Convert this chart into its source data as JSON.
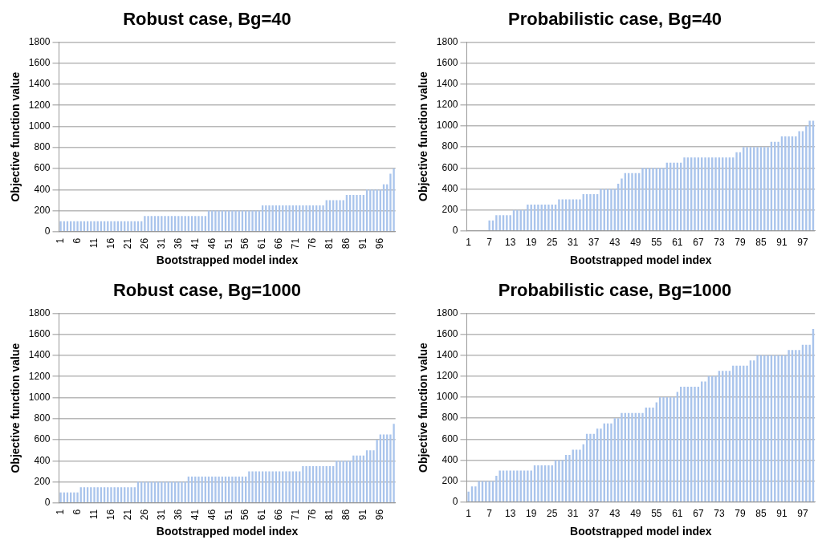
{
  "chart_data": [
    {
      "type": "bar",
      "title": "Robust case, Bg=40",
      "xlabel": "Bootstrapped model index",
      "ylabel": "Objective function value",
      "ylim": [
        0,
        1800
      ],
      "yticks": [
        0,
        200,
        400,
        600,
        800,
        1000,
        1200,
        1400,
        1600,
        1800
      ],
      "grid": "y",
      "legend": false,
      "color": "#a9c4ec",
      "categories": [
        "1",
        null,
        null,
        null,
        null,
        "6",
        null,
        null,
        null,
        null,
        "11",
        null,
        null,
        null,
        null,
        "16",
        null,
        null,
        null,
        null,
        "21",
        null,
        null,
        null,
        null,
        "26",
        null,
        null,
        null,
        null,
        "31",
        null,
        null,
        null,
        null,
        "36",
        null,
        null,
        null,
        null,
        "41",
        null,
        null,
        null,
        null,
        "46",
        null,
        null,
        null,
        null,
        "51",
        null,
        null,
        null,
        null,
        "56",
        null,
        null,
        null,
        null,
        "61",
        null,
        null,
        null,
        null,
        "66",
        null,
        null,
        null,
        null,
        "71",
        null,
        null,
        null,
        null,
        "76",
        null,
        null,
        null,
        null,
        "81",
        null,
        null,
        null,
        null,
        "86",
        null,
        null,
        null,
        null,
        "91",
        null,
        null,
        null,
        null,
        "96",
        null,
        null,
        null,
        null
      ],
      "values": [
        100,
        100,
        100,
        100,
        100,
        100,
        100,
        100,
        100,
        100,
        100,
        100,
        100,
        100,
        100,
        100,
        100,
        100,
        100,
        100,
        100,
        100,
        100,
        100,
        100,
        150,
        150,
        150,
        150,
        150,
        150,
        150,
        150,
        150,
        150,
        150,
        150,
        150,
        150,
        150,
        150,
        150,
        150,
        150,
        200,
        200,
        200,
        200,
        200,
        200,
        200,
        200,
        200,
        200,
        200,
        200,
        200,
        200,
        200,
        200,
        250,
        250,
        250,
        250,
        250,
        250,
        250,
        250,
        250,
        250,
        250,
        250,
        250,
        250,
        250,
        250,
        250,
        250,
        250,
        300,
        300,
        300,
        300,
        300,
        300,
        350,
        350,
        350,
        350,
        350,
        350,
        400,
        400,
        400,
        400,
        400,
        450,
        450,
        550,
        600
      ]
    },
    {
      "type": "bar",
      "title": "Probabilistic case, Bg=40",
      "xlabel": "Bootstrapped model index",
      "ylabel": "Objective function value",
      "ylim": [
        0,
        1800
      ],
      "yticks": [
        0,
        200,
        400,
        600,
        800,
        1000,
        1200,
        1400,
        1600,
        1800
      ],
      "grid": "y",
      "legend": false,
      "color": "#a9c4ec",
      "categories": [
        "1",
        null,
        null,
        null,
        null,
        null,
        "7",
        null,
        null,
        null,
        null,
        null,
        "13",
        null,
        null,
        null,
        null,
        null,
        "19",
        null,
        null,
        null,
        null,
        null,
        "25",
        null,
        null,
        null,
        null,
        null,
        "31",
        null,
        null,
        null,
        null,
        null,
        "37",
        null,
        null,
        null,
        null,
        null,
        "43",
        null,
        null,
        null,
        null,
        null,
        "49",
        null,
        null,
        null,
        null,
        null,
        "55",
        null,
        null,
        null,
        null,
        null,
        "61",
        null,
        null,
        null,
        null,
        null,
        "67",
        null,
        null,
        null,
        null,
        null,
        "73",
        null,
        null,
        null,
        null,
        null,
        "79",
        null,
        null,
        null,
        null,
        null,
        "85",
        null,
        null,
        null,
        null,
        null,
        "91",
        null,
        null,
        null,
        null,
        null,
        "97",
        null,
        null,
        null
      ],
      "values": [
        0,
        0,
        0,
        0,
        0,
        0,
        100,
        100,
        150,
        150,
        150,
        150,
        150,
        200,
        200,
        200,
        200,
        250,
        250,
        250,
        250,
        250,
        250,
        250,
        250,
        250,
        300,
        300,
        300,
        300,
        300,
        300,
        300,
        350,
        350,
        350,
        350,
        350,
        400,
        400,
        400,
        400,
        400,
        450,
        500,
        550,
        550,
        550,
        550,
        550,
        600,
        600,
        600,
        600,
        600,
        600,
        600,
        650,
        650,
        650,
        650,
        650,
        700,
        700,
        700,
        700,
        700,
        700,
        700,
        700,
        700,
        700,
        700,
        700,
        700,
        700,
        700,
        750,
        750,
        800,
        800,
        800,
        800,
        800,
        800,
        800,
        800,
        850,
        850,
        850,
        900,
        900,
        900,
        900,
        900,
        950,
        950,
        1000,
        1050,
        1050
      ]
    },
    {
      "type": "bar",
      "title": "Robust case, Bg=1000",
      "xlabel": "Bootstrapped model index",
      "ylabel": "Objective function value",
      "ylim": [
        0,
        1800
      ],
      "yticks": [
        0,
        200,
        400,
        600,
        800,
        1000,
        1200,
        1400,
        1600,
        1800
      ],
      "grid": "y",
      "legend": false,
      "color": "#a9c4ec",
      "categories": [
        "1",
        null,
        null,
        null,
        null,
        "6",
        null,
        null,
        null,
        null,
        "11",
        null,
        null,
        null,
        null,
        "16",
        null,
        null,
        null,
        null,
        "21",
        null,
        null,
        null,
        null,
        "26",
        null,
        null,
        null,
        null,
        "31",
        null,
        null,
        null,
        null,
        "36",
        null,
        null,
        null,
        null,
        "41",
        null,
        null,
        null,
        null,
        "46",
        null,
        null,
        null,
        null,
        "51",
        null,
        null,
        null,
        null,
        "56",
        null,
        null,
        null,
        null,
        "61",
        null,
        null,
        null,
        null,
        "66",
        null,
        null,
        null,
        null,
        "71",
        null,
        null,
        null,
        null,
        "76",
        null,
        null,
        null,
        null,
        "81",
        null,
        null,
        null,
        null,
        "86",
        null,
        null,
        null,
        null,
        "91",
        null,
        null,
        null,
        null,
        "96",
        null,
        null,
        null,
        null
      ],
      "values": [
        100,
        100,
        100,
        100,
        100,
        100,
        150,
        150,
        150,
        150,
        150,
        150,
        150,
        150,
        150,
        150,
        150,
        150,
        150,
        150,
        150,
        150,
        150,
        200,
        200,
        200,
        200,
        200,
        200,
        200,
        200,
        200,
        200,
        200,
        200,
        200,
        200,
        200,
        250,
        250,
        250,
        250,
        250,
        250,
        250,
        250,
        250,
        250,
        250,
        250,
        250,
        250,
        250,
        250,
        250,
        250,
        300,
        300,
        300,
        300,
        300,
        300,
        300,
        300,
        300,
        300,
        300,
        300,
        300,
        300,
        300,
        300,
        350,
        350,
        350,
        350,
        350,
        350,
        350,
        350,
        350,
        350,
        400,
        400,
        400,
        400,
        400,
        450,
        450,
        450,
        450,
        500,
        500,
        500,
        600,
        650,
        650,
        650,
        650,
        750
      ]
    },
    {
      "type": "bar",
      "title": "Probabilistic case, Bg=1000",
      "xlabel": "Bootstrapped model index",
      "ylabel": "Objective function value",
      "ylim": [
        0,
        1800
      ],
      "yticks": [
        0,
        200,
        400,
        600,
        800,
        1000,
        1200,
        1400,
        1600,
        1800
      ],
      "grid": "y",
      "legend": false,
      "color": "#a9c4ec",
      "categories": [
        "1",
        null,
        null,
        null,
        null,
        null,
        "7",
        null,
        null,
        null,
        null,
        null,
        "13",
        null,
        null,
        null,
        null,
        null,
        "19",
        null,
        null,
        null,
        null,
        null,
        "25",
        null,
        null,
        null,
        null,
        null,
        "31",
        null,
        null,
        null,
        null,
        null,
        "37",
        null,
        null,
        null,
        null,
        null,
        "43",
        null,
        null,
        null,
        null,
        null,
        "49",
        null,
        null,
        null,
        null,
        null,
        "55",
        null,
        null,
        null,
        null,
        null,
        "61",
        null,
        null,
        null,
        null,
        null,
        "67",
        null,
        null,
        null,
        null,
        null,
        "73",
        null,
        null,
        null,
        null,
        null,
        "79",
        null,
        null,
        null,
        null,
        null,
        "85",
        null,
        null,
        null,
        null,
        null,
        "91",
        null,
        null,
        null,
        null,
        null,
        "97",
        null,
        null,
        null
      ],
      "values": [
        100,
        150,
        150,
        200,
        200,
        200,
        200,
        200,
        250,
        300,
        300,
        300,
        300,
        300,
        300,
        300,
        300,
        300,
        300,
        350,
        350,
        350,
        350,
        350,
        350,
        400,
        400,
        400,
        450,
        450,
        500,
        500,
        500,
        550,
        650,
        650,
        650,
        700,
        700,
        750,
        750,
        750,
        800,
        800,
        850,
        850,
        850,
        850,
        850,
        850,
        850,
        900,
        900,
        900,
        950,
        1000,
        1000,
        1000,
        1000,
        1000,
        1050,
        1100,
        1100,
        1100,
        1100,
        1100,
        1100,
        1150,
        1150,
        1200,
        1200,
        1200,
        1250,
        1250,
        1250,
        1250,
        1300,
        1300,
        1300,
        1300,
        1300,
        1350,
        1350,
        1400,
        1400,
        1400,
        1400,
        1400,
        1400,
        1400,
        1400,
        1400,
        1450,
        1450,
        1450,
        1450,
        1500,
        1500,
        1500,
        1650
      ]
    }
  ]
}
